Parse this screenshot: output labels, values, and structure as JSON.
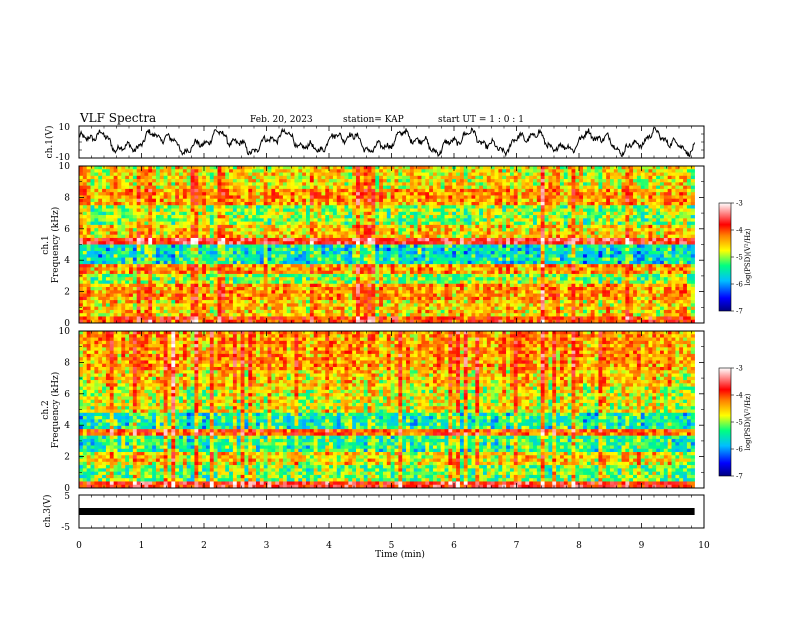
{
  "header": {
    "title": "VLF Spectra",
    "date": "Feb. 20, 2023",
    "station": "station= KAP",
    "start_time": "start  UT =   1 : 0  : 1"
  },
  "chart_data": [
    {
      "type": "line",
      "name": "ch1-waveform",
      "ylabel": "ch.1(V)",
      "xlim": [
        0,
        10
      ],
      "ylim": [
        -10,
        10
      ],
      "yticks": [
        -10,
        10
      ],
      "x_extent": [
        0,
        9.85
      ],
      "y_pattern": "noisy oscillation roughly between -8 and 8"
    },
    {
      "type": "heatmap",
      "name": "ch1-spectrogram",
      "ylabel_top": "ch.1",
      "ylabel": "Frequency (kHz)",
      "xlim": [
        0,
        10
      ],
      "ylim": [
        0,
        10
      ],
      "yticks": [
        0,
        2,
        4,
        6,
        8,
        10
      ],
      "x_extent": [
        0,
        9.85
      ],
      "colorbar": {
        "label": "log(PSD)(V²/Hz)",
        "range": [
          -7,
          -3
        ],
        "ticks": [
          "-3",
          "-4",
          "-5",
          "-6",
          "-7"
        ]
      },
      "bands": [
        {
          "y0": 0,
          "y1": 0.5,
          "level": -4.2
        },
        {
          "y0": 0.5,
          "y1": 1.5,
          "level": -4.8
        },
        {
          "y0": 1.5,
          "y1": 2.5,
          "level": -4.6
        },
        {
          "y0": 2.5,
          "y1": 3.2,
          "level": -5.2
        },
        {
          "y0": 3.2,
          "y1": 3.7,
          "level": -4.6
        },
        {
          "y0": 3.7,
          "y1": 5.0,
          "level": -5.7
        },
        {
          "y0": 5.0,
          "y1": 5.4,
          "level": -3.9
        },
        {
          "y0": 5.4,
          "y1": 6.2,
          "level": -4.8
        },
        {
          "y0": 6.2,
          "y1": 7.5,
          "level": -5.2
        },
        {
          "y0": 7.5,
          "y1": 8.5,
          "level": -4.6
        },
        {
          "y0": 8.5,
          "y1": 10,
          "level": -4.9
        }
      ]
    },
    {
      "type": "heatmap",
      "name": "ch2-spectrogram",
      "ylabel_top": "ch.2",
      "ylabel": "Frequency (kHz)",
      "xlim": [
        0,
        10
      ],
      "ylim": [
        0,
        10
      ],
      "yticks": [
        0,
        2,
        4,
        6,
        8,
        10
      ],
      "x_extent": [
        0,
        9.85
      ],
      "colorbar": {
        "label": "log(PSD)(V²/Hz)",
        "range": [
          -7,
          -3
        ],
        "ticks": [
          "-3",
          "-4",
          "-5",
          "-6",
          "-7"
        ]
      },
      "bands": [
        {
          "y0": 0,
          "y1": 0.4,
          "level": -4.0
        },
        {
          "y0": 0.4,
          "y1": 1.5,
          "level": -5.3
        },
        {
          "y0": 1.5,
          "y1": 2.3,
          "level": -4.9
        },
        {
          "y0": 2.3,
          "y1": 3.3,
          "level": -5.5
        },
        {
          "y0": 3.3,
          "y1": 3.7,
          "level": -4.3
        },
        {
          "y0": 3.7,
          "y1": 4.7,
          "level": -5.6
        },
        {
          "y0": 4.7,
          "y1": 6.5,
          "level": -5.0
        },
        {
          "y0": 6.5,
          "y1": 7.6,
          "level": -4.8
        },
        {
          "y0": 7.6,
          "y1": 10,
          "level": -4.6
        }
      ]
    },
    {
      "type": "line",
      "name": "ch3-waveform",
      "ylabel": "ch.3(V)",
      "xlabel": "Time (min)",
      "xlim": [
        0,
        10
      ],
      "ylim": [
        -5,
        5
      ],
      "yticks": [
        -5,
        5
      ],
      "xticks": [
        0,
        1,
        2,
        3,
        4,
        5,
        6,
        7,
        8,
        9,
        10
      ],
      "x_extent": [
        0,
        9.85
      ],
      "y_value": 0
    }
  ],
  "colors": {
    "colormap": [
      "#000080",
      "#0000ff",
      "#00bfff",
      "#00ff80",
      "#ffff00",
      "#ff8000",
      "#ff0000",
      "#ff9999",
      "#ffffff"
    ]
  }
}
